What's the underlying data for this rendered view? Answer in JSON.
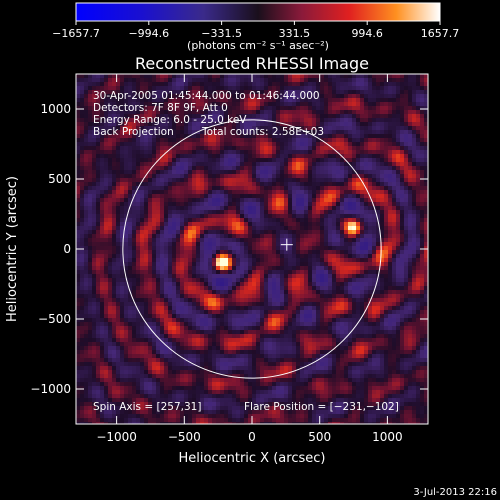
{
  "chart_data": {
    "type": "heatmap",
    "title": "Reconstructed RHESSI Image",
    "xlabel": "Heliocentric X (arcsec)",
    "ylabel": "Heliocentric Y (arcsec)",
    "xlim": [
      -1300,
      1300
    ],
    "ylim": [
      -1250,
      1250
    ],
    "x_ticks": [
      -1000,
      -500,
      0,
      500,
      1000
    ],
    "x_tick_labels": [
      "−1000",
      "−500",
      "0",
      "500",
      "1000"
    ],
    "y_ticks": [
      -1000,
      -500,
      0,
      500,
      1000
    ],
    "y_tick_labels": [
      "−1000",
      "−500",
      "0",
      "500",
      "1000"
    ],
    "colorbar": {
      "ticks": [
        -1657.7,
        -994.6,
        -331.5,
        331.5,
        994.6,
        1657.7
      ],
      "tick_labels": [
        "−1657.7",
        "−994.6",
        "−331.5",
        "331.5",
        "994.6",
        "1657.7"
      ],
      "unit": "(photons cm⁻² s⁻¹ asec⁻²)",
      "range": [
        -1657.7,
        1657.7
      ]
    },
    "annotations": [
      "30-Apr-2005 01:45:44.000 to 01:46:44.000",
      "Detectors: 7F 8F 9F, Att 0",
      "Energy Range: 6.0 - 25.0 keV",
      "Back Projection",
      "Total counts: 2.58E+03"
    ],
    "spin_axis": "Spin Axis = [257,31]",
    "flare_position": "Flare Position = [−231,−102]",
    "solar_limb_radius": 954,
    "marker": {
      "x": 257,
      "y": 31
    },
    "sources": [
      {
        "x": -240,
        "y": -80,
        "peak": 1657.7
      },
      {
        "x": 740,
        "y": 170,
        "peak": 1500
      }
    ],
    "grid": false
  },
  "footer": {
    "timestamp": "3-Jul-2013 22:16"
  }
}
